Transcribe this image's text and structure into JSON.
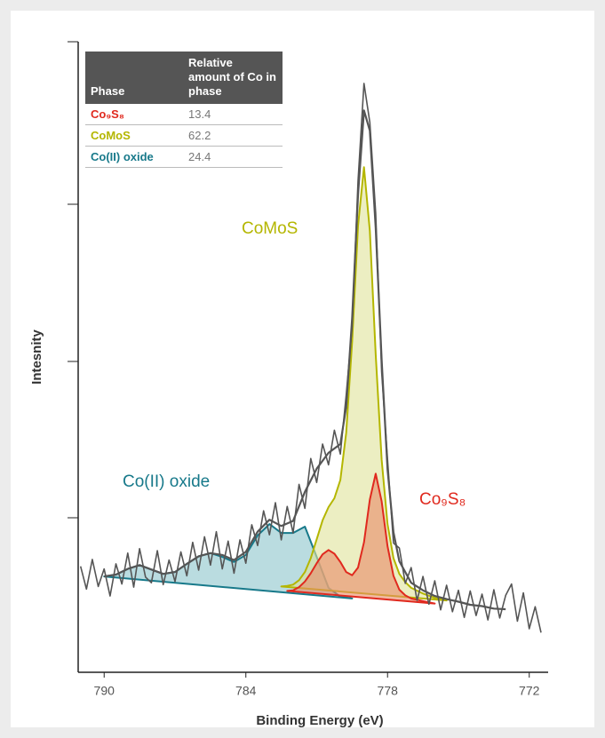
{
  "chart_data": {
    "type": "line",
    "xlabel": "Binding Energy (eV)",
    "ylabel": "Intesnity",
    "xlim": [
      791.1,
      771.2
    ],
    "xticks": [
      790,
      784,
      778,
      772
    ],
    "ylim": [
      0,
      100
    ],
    "series": [
      {
        "name": "Co(II) oxide",
        "color": "#17798a",
        "fill": "#8cc5cb",
        "x": [
          790,
          789.5,
          789,
          788.5,
          788,
          787.5,
          787,
          786.5,
          786,
          785.5,
          785,
          784.5,
          784,
          783.5,
          783,
          782.5,
          782,
          781.5,
          781,
          780.5,
          780,
          779.5
        ],
        "values": [
          15.2,
          15.5,
          16.4,
          17.0,
          16.3,
          15.6,
          15.9,
          17.2,
          18.4,
          18.9,
          18.3,
          17.5,
          18.6,
          21.7,
          23.5,
          22.1,
          22.1,
          23.1,
          18.3,
          13.4,
          12.0,
          11.7
        ]
      },
      {
        "name": "CoMoS",
        "color": "#b4b600",
        "fill": "#dfe29a",
        "x": [
          782.5,
          782.25,
          782,
          781.75,
          781.5,
          781.25,
          781,
          780.75,
          780.5,
          780.25,
          780,
          779.75,
          779.5,
          779.25,
          779,
          778.75,
          778.5,
          778.25,
          778,
          777.75,
          777.5,
          777.25,
          777,
          776.5,
          776,
          775.5
        ],
        "values": [
          13.6,
          13.7,
          13.9,
          14.6,
          15.9,
          18.1,
          21.1,
          24.1,
          26.2,
          27.6,
          30.5,
          38.0,
          52.5,
          70.8,
          80.1,
          70.0,
          50.4,
          33.7,
          23.5,
          18.1,
          15.6,
          14.3,
          13.4,
          12.5,
          11.8,
          11.4
        ]
      },
      {
        "name": "Co₉S₈",
        "color": "#e0291e",
        "fill": "#e98a68",
        "x": [
          782.25,
          782,
          781.75,
          781.5,
          781.25,
          781,
          780.75,
          780.5,
          780.25,
          780,
          779.75,
          779.5,
          779.25,
          779,
          778.75,
          778.5,
          778.25,
          778,
          777.75,
          777.5,
          777.25,
          777,
          776.5,
          776
        ],
        "values": [
          12.9,
          13.0,
          13.5,
          14.4,
          15.7,
          17.3,
          18.7,
          19.4,
          18.8,
          17.5,
          15.9,
          15.4,
          16.6,
          20.6,
          27.4,
          31.5,
          27.1,
          20.0,
          15.3,
          13.1,
          12.2,
          11.7,
          11.3,
          10.9
        ]
      },
      {
        "color": "#555555",
        "x": [
          791,
          790.75,
          790.5,
          790.25,
          790,
          789.75,
          789.5,
          789.25,
          789,
          788.75,
          788.5,
          788.25,
          788,
          787.75,
          787.5,
          787.25,
          787,
          786.75,
          786.5,
          786.25,
          786,
          785.75,
          785.5,
          785.25,
          785,
          784.75,
          784.5,
          784.25,
          784,
          783.75,
          783.5,
          783.25,
          783,
          782.75,
          782.5,
          782.25,
          782,
          781.75,
          781.5,
          781.25,
          781,
          780.75,
          780.5,
          780.25,
          780,
          779.75,
          779.5,
          779.25,
          779,
          778.75,
          778.5,
          778.25,
          778,
          777.75,
          777.5,
          777.25,
          777,
          776.75,
          776.5,
          776.25,
          776,
          775.75,
          775.5,
          775.25,
          775,
          774.75,
          774.5,
          774.25,
          774,
          773.75,
          773.5,
          773.25,
          773,
          772.75,
          772.5,
          772.25,
          772,
          771.75,
          771.5
        ],
        "values": [
          16.8,
          13.2,
          17.9,
          13.6,
          16.4,
          12.1,
          17.2,
          14.0,
          18.9,
          13.5,
          19.6,
          15.1,
          14.2,
          19.3,
          13.9,
          17.8,
          14.4,
          19.1,
          15.3,
          20.6,
          16.2,
          21.5,
          17.0,
          22.3,
          16.4,
          20.8,
          15.7,
          21.0,
          17.3,
          23.4,
          20.1,
          25.6,
          21.8,
          26.9,
          21.0,
          26.3,
          22.1,
          29.8,
          26.0,
          33.9,
          30.1,
          36.2,
          32.9,
          38.4,
          34.6,
          44.0,
          54.8,
          77.9,
          93.4,
          87.2,
          72.8,
          47.6,
          33.8,
          20.5,
          19.7,
          14.1,
          16.6,
          11.4,
          15.2,
          10.8,
          14.5,
          9.9,
          13.8,
          9.6,
          13.0,
          8.7,
          12.9,
          9.0,
          12.4,
          8.3,
          13.1,
          8.6,
          12.2,
          14.0,
          8.1,
          12.6,
          6.9,
          10.4,
          6.3
        ]
      },
      {
        "color": "#555555",
        "x": [
          790,
          789.5,
          789,
          788.5,
          788,
          787.5,
          787,
          786.5,
          786,
          785.5,
          785,
          784.5,
          784,
          783.5,
          783,
          782.5,
          782,
          781.5,
          781,
          780.5,
          780,
          779.75,
          779.5,
          779.25,
          779,
          778.75,
          778.5,
          778.25,
          778,
          777.75,
          777.5,
          777,
          776.5,
          776,
          775.5,
          775,
          774.5,
          774,
          773.5,
          773
        ],
        "values": [
          15.2,
          15.5,
          16.4,
          17.0,
          16.3,
          15.6,
          15.9,
          17.2,
          18.4,
          18.9,
          18.6,
          17.8,
          19.1,
          22.3,
          24.2,
          23.2,
          24.0,
          28.6,
          32.3,
          34.8,
          36.2,
          42.1,
          56.2,
          75.7,
          89.1,
          85.9,
          70.5,
          49.5,
          32.2,
          22.2,
          17.6,
          14.2,
          13.0,
          12.1,
          11.6,
          11.2,
          10.7,
          10.5,
          10.1,
          10.0
        ]
      }
    ]
  },
  "table": {
    "header": [
      "Phase",
      "Relative amount of Co in phase"
    ],
    "rows": [
      [
        "Co₉S₈",
        13.4
      ],
      [
        "CoMoS",
        62.2
      ],
      [
        "Co(II) oxide",
        24.4
      ]
    ]
  }
}
